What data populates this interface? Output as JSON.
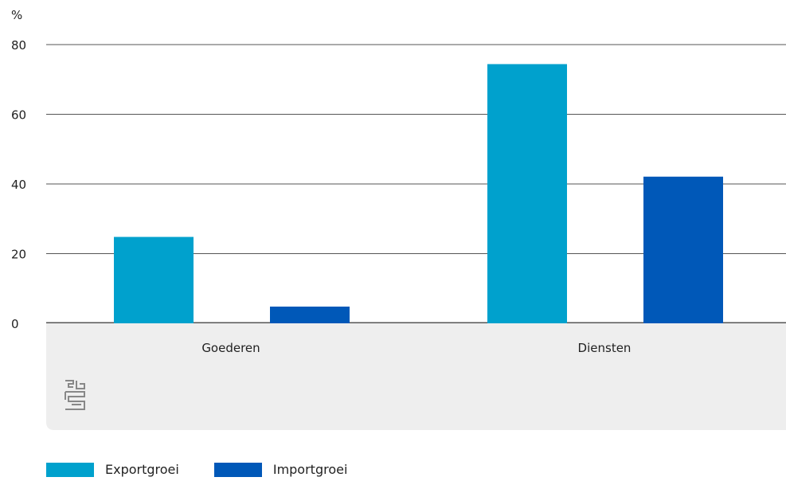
{
  "chart_data": {
    "type": "bar",
    "unit_label": "%",
    "categories": [
      "Goederen",
      "Diensten"
    ],
    "series": [
      {
        "name": "Exportgroei",
        "values": [
          24.8,
          74.4
        ],
        "color": "#00a1cd"
      },
      {
        "name": "Importgroei",
        "values": [
          4.8,
          42.1
        ],
        "color": "#0058b8"
      }
    ],
    "ylim": [
      0,
      80
    ],
    "yticks": [
      0,
      20,
      40,
      60,
      80
    ],
    "grid": true,
    "legend_position": "bottom-left",
    "logo": "cbs-logo"
  },
  "colors": {
    "axis_band": "#eeeeee",
    "gridline": "#555555",
    "logo": "#888888"
  }
}
